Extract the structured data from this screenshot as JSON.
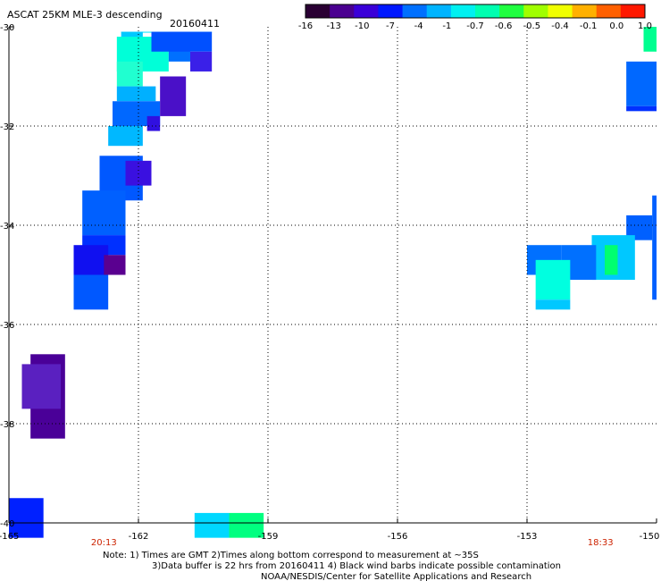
{
  "chart_data": {
    "type": "heatmap",
    "title": "ASCAT 25KM MLE-3 descending",
    "date": "20160411",
    "xlim": [
      -165,
      -150
    ],
    "ylim": [
      -40,
      -30
    ],
    "x_ticks": [
      {
        "v": -165,
        "label": "-165"
      },
      {
        "v": -162,
        "label": "-162"
      },
      {
        "v": -159,
        "label": "-159"
      },
      {
        "v": -156,
        "label": "-156"
      },
      {
        "v": -153,
        "label": "-153"
      },
      {
        "v": -150,
        "label": "-150"
      }
    ],
    "y_ticks": [
      {
        "v": -30,
        "label": "-30"
      },
      {
        "v": -32,
        "label": "-32"
      },
      {
        "v": -34,
        "label": "-34"
      },
      {
        "v": -36,
        "label": "-36"
      },
      {
        "v": -38,
        "label": "-38"
      },
      {
        "v": -40,
        "label": "-40"
      }
    ],
    "grid": true,
    "colorbar": {
      "labels": [
        "-16",
        "-13",
        "-10",
        "-7",
        "-4",
        "-1",
        "-0.7",
        "-0.6",
        "-0.5",
        "-0.4",
        "-0.1",
        "0.0",
        "1.0"
      ],
      "colors": [
        "#2a0033",
        "#4a0090",
        "#3a00d8",
        "#0018ff",
        "#0070ff",
        "#00b4ff",
        "#00f0f0",
        "#00ffb0",
        "#20ff40",
        "#a0ff00",
        "#f0ff00",
        "#ffb000",
        "#ff6000",
        "#ff1800"
      ]
    },
    "pass_times": [
      {
        "x": -162.8,
        "label": "20:13"
      },
      {
        "x": -151.3,
        "label": "18:33"
      }
    ],
    "cells": [
      {
        "x0": -162.4,
        "x1": -160.3,
        "y0": -30.1,
        "y1": -30.05,
        "c": "#00e8ff"
      },
      {
        "x0": -162.4,
        "x1": -161.9,
        "y0": -30.1,
        "y1": -30.8,
        "c": "#00c8ff"
      },
      {
        "x0": -162.5,
        "x1": -161.3,
        "y0": -30.2,
        "y1": -30.9,
        "c": "#00ffd8"
      },
      {
        "x0": -161.3,
        "x1": -160.8,
        "y0": -30.1,
        "y1": -30.7,
        "c": "#0070ff"
      },
      {
        "x0": -161.7,
        "x1": -160.3,
        "y0": -30.1,
        "y1": -30.5,
        "c": "#0050ff"
      },
      {
        "x0": -160.8,
        "x1": -160.3,
        "y0": -30.5,
        "y1": -30.9,
        "c": "#3a20e8"
      },
      {
        "x0": -162.5,
        "x1": -161.9,
        "y0": -30.7,
        "y1": -31.2,
        "c": "#20ffd0"
      },
      {
        "x0": -162.5,
        "x1": -161.6,
        "y0": -31.2,
        "y1": -31.5,
        "c": "#00b0ff"
      },
      {
        "x0": -162.6,
        "x1": -161.5,
        "y0": -31.5,
        "y1": -32.0,
        "c": "#0068ff"
      },
      {
        "x0": -161.5,
        "x1": -160.9,
        "y0": -31.0,
        "y1": -31.8,
        "c": "#4a10c8"
      },
      {
        "x0": -161.8,
        "x1": -161.5,
        "y0": -31.8,
        "y1": -32.1,
        "c": "#3010e0"
      },
      {
        "x0": -162.7,
        "x1": -161.9,
        "y0": -32.0,
        "y1": -32.4,
        "c": "#00b8ff"
      },
      {
        "x0": -162.9,
        "x1": -161.9,
        "y0": -32.6,
        "y1": -33.5,
        "c": "#0058ff"
      },
      {
        "x0": -162.3,
        "x1": -161.7,
        "y0": -32.7,
        "y1": -33.2,
        "c": "#3a10e0"
      },
      {
        "x0": -163.3,
        "x1": -162.3,
        "y0": -33.3,
        "y1": -34.2,
        "c": "#0060ff"
      },
      {
        "x0": -163.3,
        "x1": -162.3,
        "y0": -34.2,
        "y1": -34.6,
        "c": "#0030ff"
      },
      {
        "x0": -163.5,
        "x1": -162.7,
        "y0": -34.4,
        "y1": -35.0,
        "c": "#1010f0"
      },
      {
        "x0": -162.8,
        "x1": -162.3,
        "y0": -34.6,
        "y1": -35.0,
        "c": "#5a0090"
      },
      {
        "x0": -163.5,
        "x1": -162.7,
        "y0": -35.0,
        "y1": -35.7,
        "c": "#0058ff"
      },
      {
        "x0": -164.5,
        "x1": -163.7,
        "y0": -36.6,
        "y1": -38.3,
        "c": "#4a0098"
      },
      {
        "x0": -164.7,
        "x1": -163.8,
        "y0": -36.8,
        "y1": -37.7,
        "c": "#5a20c0"
      },
      {
        "x0": -165.0,
        "x1": -164.2,
        "y0": -39.5,
        "y1": -40.3,
        "c": "#0020ff"
      },
      {
        "x0": -160.7,
        "x1": -159.9,
        "y0": -39.8,
        "y1": -40.3,
        "c": "#00d8ff"
      },
      {
        "x0": -159.9,
        "x1": -159.1,
        "y0": -39.8,
        "y1": -40.3,
        "c": "#00ff80"
      },
      {
        "x0": -150.3,
        "x1": -150.0,
        "y0": -30.0,
        "y1": -30.5,
        "c": "#00ff90"
      },
      {
        "x0": -150.7,
        "x1": -150.0,
        "y0": -30.7,
        "y1": -31.6,
        "c": "#0068ff"
      },
      {
        "x0": -150.7,
        "x1": -150.0,
        "y0": -31.6,
        "y1": -31.7,
        "c": "#0030ff"
      },
      {
        "x0": -150.1,
        "x1": -150.0,
        "y0": -33.4,
        "y1": -35.5,
        "c": "#0060ff"
      },
      {
        "x0": -150.7,
        "x1": -150.1,
        "y0": -33.8,
        "y1": -34.3,
        "c": "#0060ff"
      },
      {
        "x0": -151.5,
        "x1": -150.5,
        "y0": -34.2,
        "y1": -35.1,
        "c": "#00c8ff"
      },
      {
        "x0": -152.2,
        "x1": -151.4,
        "y0": -34.4,
        "y1": -35.1,
        "c": "#0070ff"
      },
      {
        "x0": -151.2,
        "x1": -150.9,
        "y0": -34.4,
        "y1": -35.0,
        "c": "#00ff70"
      },
      {
        "x0": -153.0,
        "x1": -152.2,
        "y0": -34.4,
        "y1": -35.0,
        "c": "#0070ff"
      },
      {
        "x0": -152.8,
        "x1": -152.0,
        "y0": -34.7,
        "y1": -35.5,
        "c": "#00ffe0"
      },
      {
        "x0": -152.8,
        "x1": -152.0,
        "y0": -35.5,
        "y1": -35.7,
        "c": "#00c8ff"
      }
    ]
  },
  "footer": {
    "line1": "Note: 1) Times are GMT 2)Times along bottom correspond to measurement at ~35S",
    "line2": "3)Data buffer is 22 hrs from 20160411 4) Black wind barbs indicate possible contamination",
    "line3": "NOAA/NESDIS/Center for Satellite Applications and Research"
  }
}
